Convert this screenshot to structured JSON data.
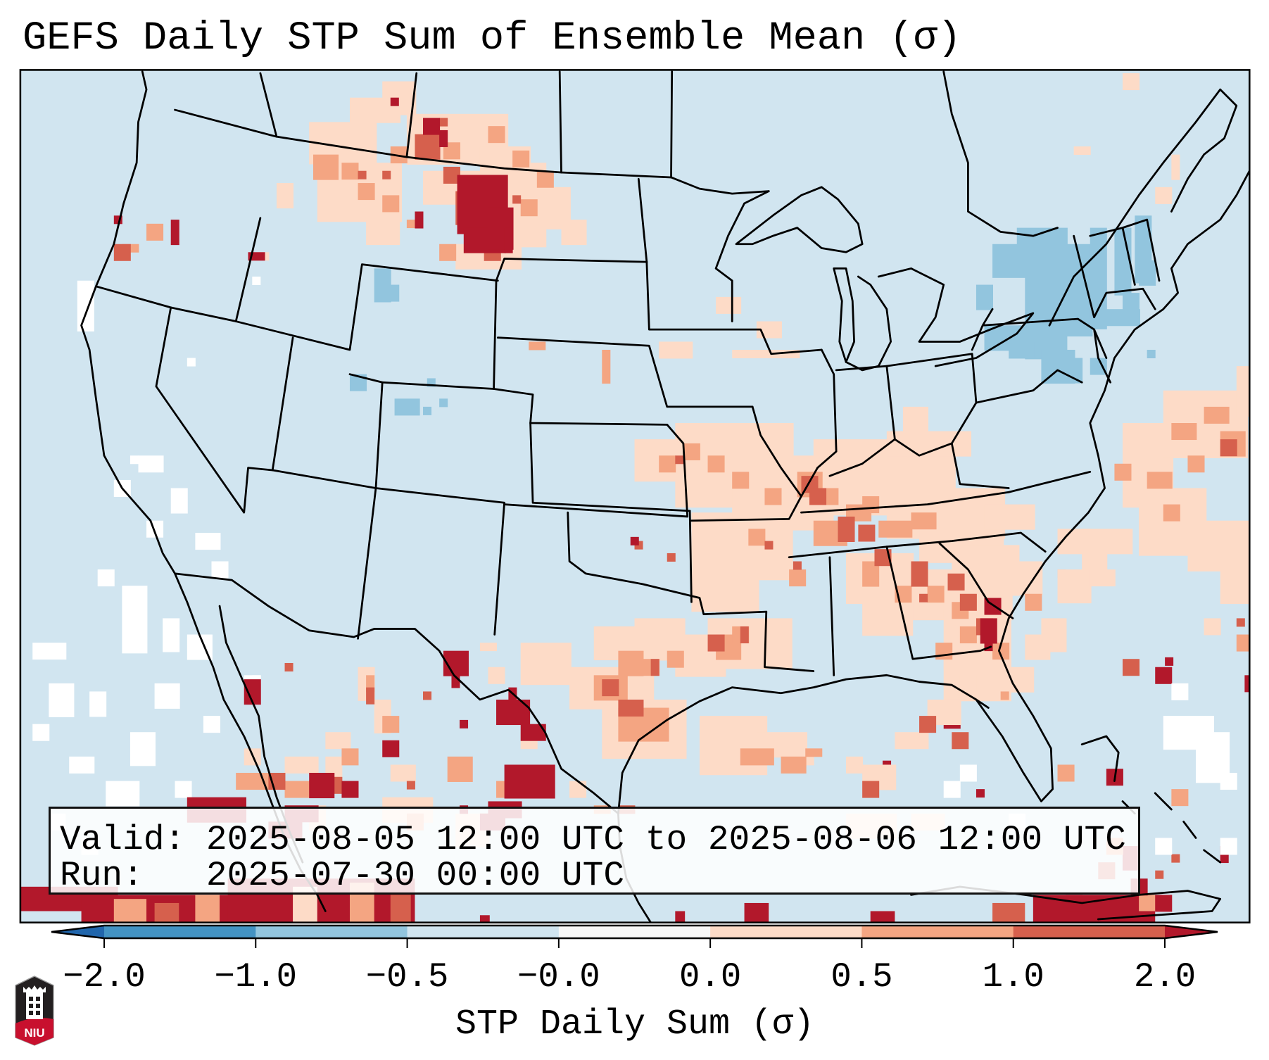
{
  "title": "GEFS Daily STP Sum of Ensemble Mean (σ)",
  "info_box": {
    "valid_line": "Valid: 2025-08-05 12:00 UTC to 2025-08-06 12:00 UTC",
    "run_line": "Run:   2025-07-30 00:00 UTC"
  },
  "colorbar": {
    "label": "STP Daily Sum (σ)",
    "ticks": [
      "−2.0",
      "−1.0",
      "−0.5",
      "−0.0",
      "0.0",
      "0.5",
      "1.0",
      "2.0"
    ],
    "boundaries": [
      -2.0,
      -1.0,
      -0.5,
      -0.0,
      0.0,
      0.5,
      1.0,
      2.0
    ],
    "extend": "both",
    "colors": {
      "under": "#2166ac",
      "bins": [
        "#4393c3",
        "#92c5de",
        "#d1e5f0",
        "#f7f7f7",
        "#fddbc7",
        "#f4a582",
        "#d6604d"
      ],
      "over": "#b2182b"
    }
  },
  "map": {
    "region": "CONUS",
    "background_color": "#d1e5f0",
    "palette": {
      "n2": "#92c5de",
      "w": "#ffffff",
      "p1": "#fddbc7",
      "p2": "#f4a582",
      "p3": "#d6604d",
      "p4": "#b2182b"
    }
  },
  "logo": {
    "text": "NIU",
    "colors": {
      "shield": "#231f20",
      "band": "#c8102e"
    }
  }
}
